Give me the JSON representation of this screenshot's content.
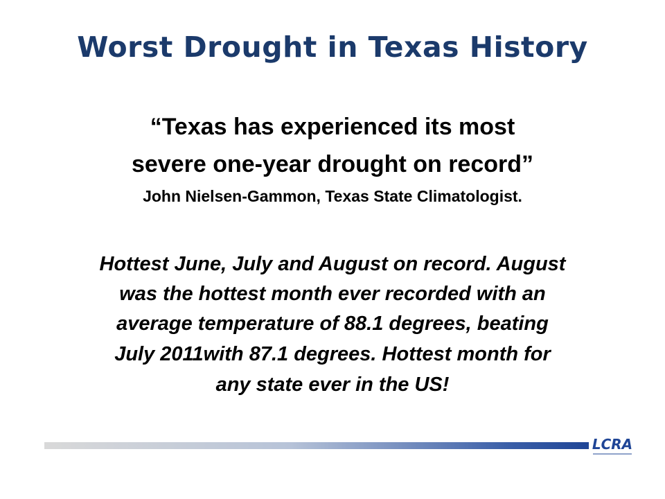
{
  "header": {
    "title": "Worst Drought in Texas History"
  },
  "quote": {
    "lines": [
      "“Texas has experienced its most",
      "severe one-year drought on record”"
    ],
    "attribution": "John Nielsen-Gammon, Texas State Climatologist."
  },
  "body": {
    "lines": [
      "Hottest June, July and August on record.  August",
      "was the hottest month ever recorded with an",
      "average temperature of  88.1 degrees, beating",
      "July 2011with 87.1 degrees.  Hottest month for",
      "any state ever in the US!"
    ]
  },
  "footer": {
    "logo": "LCRA"
  }
}
